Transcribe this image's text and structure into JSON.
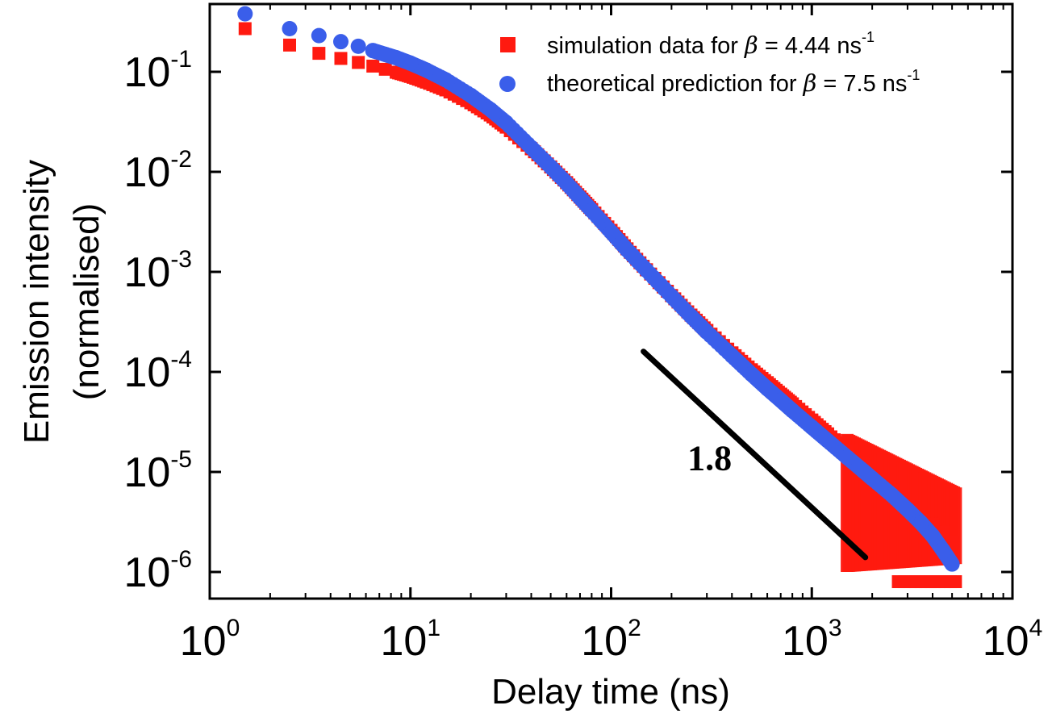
{
  "chart_data": {
    "type": "scatter",
    "title": "",
    "xlabel": "Delay time (ns)",
    "ylabel_line1": "Emission intensity",
    "ylabel_line2": "(normalised)",
    "xscale": "log",
    "yscale": "log",
    "xlim": [
      1,
      10000
    ],
    "ylim": [
      6e-07,
      0.5
    ],
    "x_ticks": [
      {
        "value": 1,
        "base": "10",
        "exp": "0"
      },
      {
        "value": 10,
        "base": "10",
        "exp": "1"
      },
      {
        "value": 100,
        "base": "10",
        "exp": "2"
      },
      {
        "value": 1000,
        "base": "10",
        "exp": "3"
      },
      {
        "value": 10000,
        "base": "10",
        "exp": "4"
      }
    ],
    "y_ticks": [
      {
        "value": 1e-06,
        "base": "10",
        "exp": "-6"
      },
      {
        "value": 1e-05,
        "base": "10",
        "exp": "-5"
      },
      {
        "value": 0.0001,
        "base": "10",
        "exp": "-4"
      },
      {
        "value": 0.001,
        "base": "10",
        "exp": "-3"
      },
      {
        "value": 0.01,
        "base": "10",
        "exp": "-2"
      },
      {
        "value": 0.1,
        "base": "10",
        "exp": "-1"
      }
    ],
    "legend_position": "top-right",
    "series": [
      {
        "name": "simulation data for β = 4.44 ns-1",
        "legend_prefix": "simulation data for ",
        "legend_symbol": "β",
        "legend_suffix": " = 4.44 ns",
        "legend_exp": "-1",
        "marker": "square",
        "color": "#ff1a10",
        "points": [
          [
            1.5,
            0.27
          ],
          [
            2.5,
            0.185
          ],
          [
            3.5,
            0.153
          ],
          [
            4.5,
            0.136
          ],
          [
            5.5,
            0.124
          ],
          [
            6.5,
            0.114
          ],
          [
            7.5,
            0.106
          ],
          [
            8.5,
            0.099
          ],
          [
            10,
            0.09
          ],
          [
            12,
            0.079
          ],
          [
            15,
            0.066
          ],
          [
            20,
            0.049
          ],
          [
            25,
            0.037
          ],
          [
            30,
            0.028
          ],
          [
            40,
            0.017
          ],
          [
            50,
            0.0112
          ],
          [
            60,
            0.0078
          ],
          [
            70,
            0.0056
          ],
          [
            80,
            0.0042
          ],
          [
            100,
            0.0026
          ],
          [
            120,
            0.0017
          ],
          [
            150,
            0.00105
          ],
          [
            200,
            0.00058
          ],
          [
            250,
            0.00037
          ],
          [
            300,
            0.00026
          ],
          [
            400,
            0.000155
          ],
          [
            500,
            0.000105
          ],
          [
            600,
            7.8e-05
          ],
          [
            700,
            6e-05
          ],
          [
            800,
            4.8e-05
          ],
          [
            1000,
            3.3e-05
          ],
          [
            1200,
            2.4e-05
          ],
          [
            1500,
            1.6e-05
          ],
          [
            1800,
            1.2e-05
          ],
          [
            2000,
            9e-06
          ],
          [
            2500,
            6.5e-06
          ],
          [
            3000,
            4.5e-06
          ],
          [
            3500,
            3.5e-06
          ],
          [
            4000,
            3e-06
          ],
          [
            4500,
            2.5e-06
          ],
          [
            5000,
            2e-06
          ],
          [
            2700,
            8e-07
          ],
          [
            2900,
            8e-07
          ],
          [
            3100,
            8e-07
          ],
          [
            3300,
            8e-07
          ],
          [
            3500,
            8e-07
          ],
          [
            3700,
            8e-07
          ],
          [
            3900,
            8e-07
          ],
          [
            4100,
            8e-07
          ],
          [
            4300,
            8e-07
          ],
          [
            4600,
            8e-07
          ],
          [
            4900,
            8e-07
          ],
          [
            5200,
            8e-07
          ]
        ],
        "scatter_band": {
          "note": "noisy spread of simulation points at long delay times",
          "x_range": [
            1500,
            5200
          ],
          "y_min": [
            1e-06,
            1.2e-06
          ],
          "y_max": [
            2.4e-05,
            7e-06
          ]
        }
      },
      {
        "name": "theoretical prediction for β = 7.5 ns-1",
        "legend_prefix": "theoretical prediction for ",
        "legend_symbol": "β",
        "legend_suffix": " = 7.5 ns",
        "legend_exp": "-1",
        "marker": "circle",
        "color": "#3a5eea",
        "points": [
          [
            1.5,
            0.38
          ],
          [
            2.5,
            0.27
          ],
          [
            3.5,
            0.23
          ],
          [
            4.5,
            0.2
          ],
          [
            5.5,
            0.18
          ],
          [
            6.5,
            0.163
          ],
          [
            7.5,
            0.149
          ],
          [
            8.5,
            0.138
          ],
          [
            10,
            0.122
          ],
          [
            12,
            0.104
          ],
          [
            15,
            0.083
          ],
          [
            20,
            0.058
          ],
          [
            25,
            0.042
          ],
          [
            30,
            0.031
          ],
          [
            40,
            0.0175
          ],
          [
            50,
            0.0112
          ],
          [
            60,
            0.0077
          ],
          [
            70,
            0.0055
          ],
          [
            80,
            0.0041
          ],
          [
            100,
            0.0025
          ],
          [
            120,
            0.00166
          ],
          [
            150,
            0.00104
          ],
          [
            200,
            0.00057
          ],
          [
            250,
            0.00036
          ],
          [
            300,
            0.00025
          ],
          [
            400,
            0.000145
          ],
          [
            500,
            9.5e-05
          ],
          [
            600,
            6.8e-05
          ],
          [
            700,
            5.2e-05
          ],
          [
            800,
            4.1e-05
          ],
          [
            1000,
            2.8e-05
          ],
          [
            1200,
            2.05e-05
          ],
          [
            1500,
            1.4e-05
          ],
          [
            1800,
            1.03e-05
          ],
          [
            2000,
            8.6e-06
          ],
          [
            2500,
            5.9e-06
          ],
          [
            3000,
            4.2e-06
          ],
          [
            3500,
            3.1e-06
          ],
          [
            4000,
            2.3e-06
          ],
          [
            4500,
            1.65e-06
          ],
          [
            5000,
            1.2e-06
          ]
        ]
      }
    ],
    "annotation": {
      "text": "1.8",
      "note": "slope guide line",
      "line_start": [
        145,
        0.00016
      ],
      "line_end": [
        1850,
        1.4e-06
      ],
      "label_position": [
        240,
        1.05e-05
      ]
    }
  }
}
